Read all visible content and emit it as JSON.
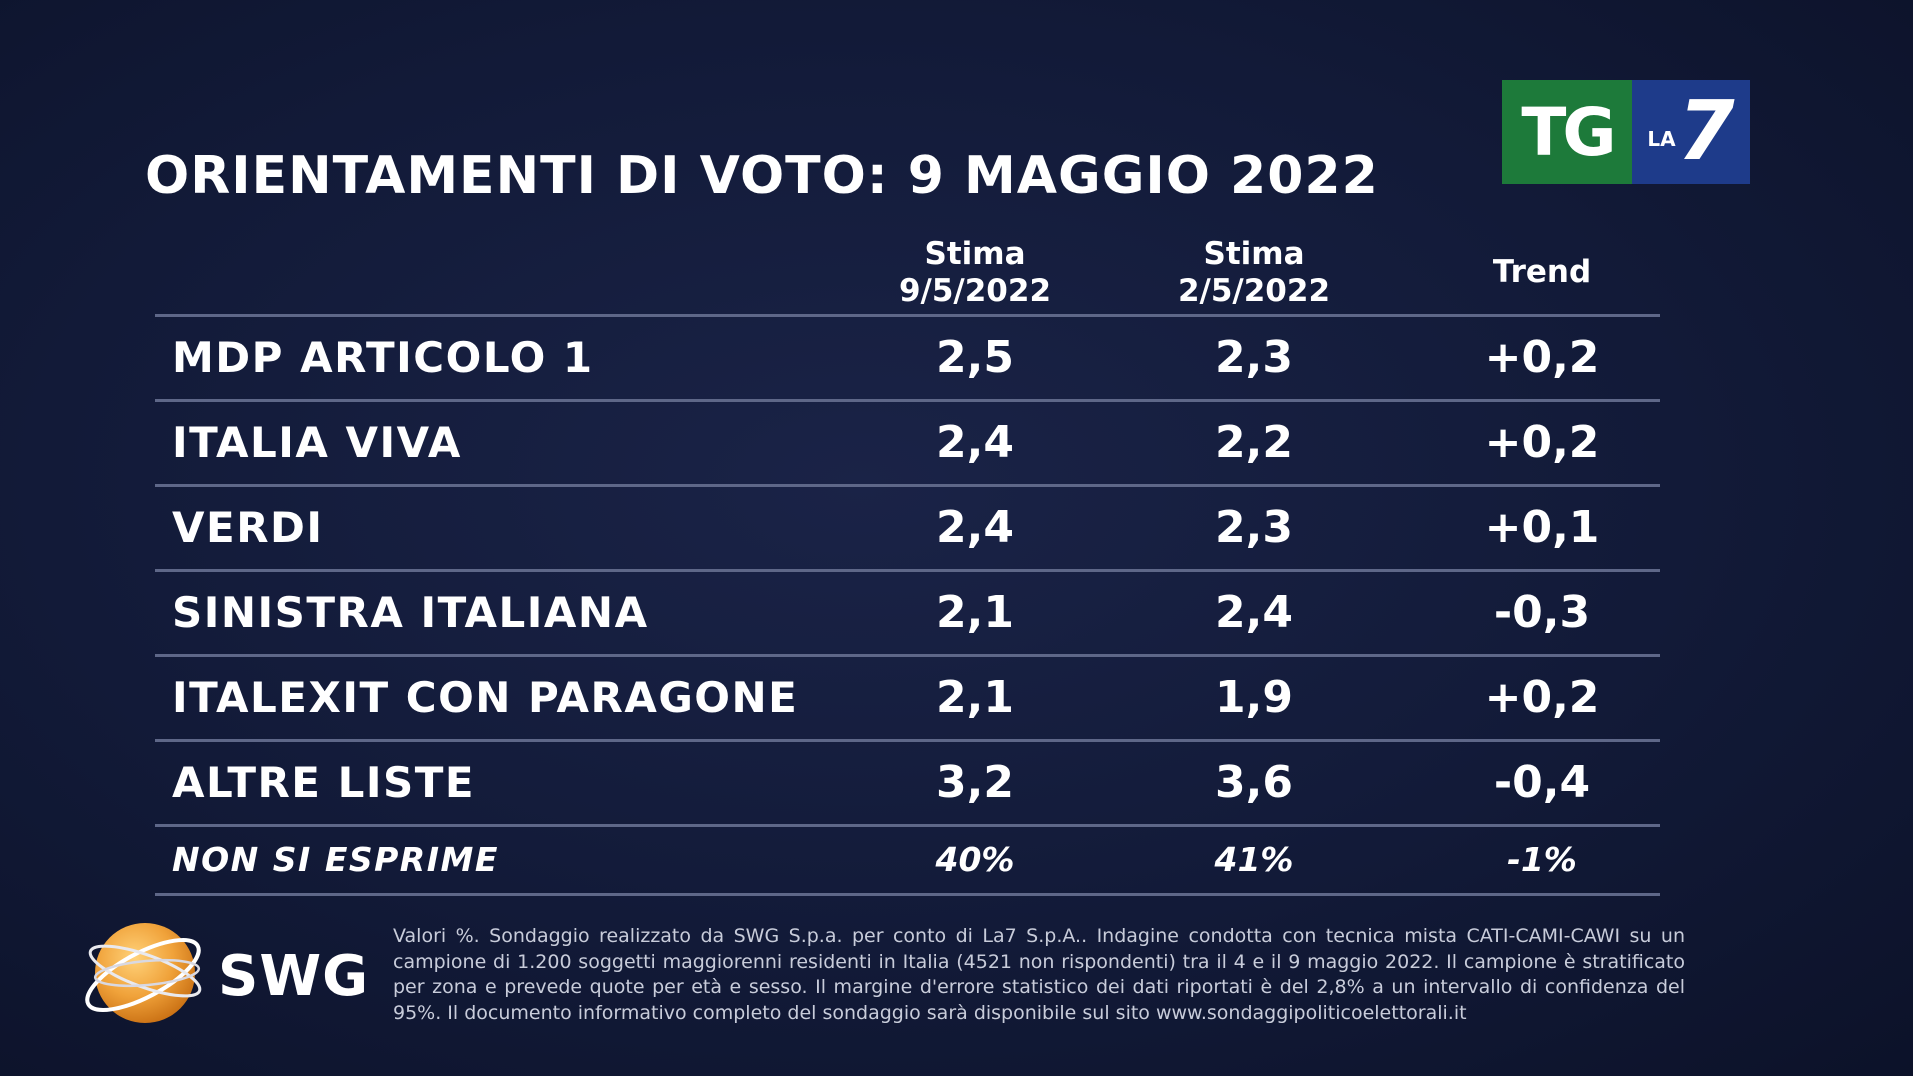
{
  "title": "ORIENTAMENTI DI VOTO: 9 MAGGIO 2022",
  "logo": {
    "tg": "TG",
    "la": "LA",
    "seven": "7"
  },
  "colors": {
    "background": "#121a38",
    "tg_green": "#1d7a3a",
    "la7_blue": "#1e3b8a",
    "swg_orange": "#f0a23a",
    "divider": "#5e6788"
  },
  "chart_data": {
    "type": "table",
    "title": "ORIENTAMENTI DI VOTO: 9 MAGGIO 2022",
    "columns": [
      {
        "line1": "Stima",
        "line2": "9/5/2022"
      },
      {
        "line1": "Stima",
        "line2": "2/5/2022"
      },
      {
        "line1": "Trend",
        "line2": ""
      }
    ],
    "rows": [
      {
        "party": "MDP ARTICOLO 1",
        "stima_9_5": "2,5",
        "stima_2_5": "2,3",
        "trend": "+0,2"
      },
      {
        "party": "ITALIA VIVA",
        "stima_9_5": "2,4",
        "stima_2_5": "2,2",
        "trend": "+0,2"
      },
      {
        "party": "VERDI",
        "stima_9_5": "2,4",
        "stima_2_5": "2,3",
        "trend": "+0,1"
      },
      {
        "party": "SINISTRA ITALIANA",
        "stima_9_5": "2,1",
        "stima_2_5": "2,4",
        "trend": "-0,3"
      },
      {
        "party": "ITALEXIT CON PARAGONE",
        "stima_9_5": "2,1",
        "stima_2_5": "1,9",
        "trend": "+0,2"
      },
      {
        "party": "ALTRE LISTE",
        "stima_9_5": "3,2",
        "stima_2_5": "3,6",
        "trend": "-0,4"
      },
      {
        "party": "NON SI ESPRIME",
        "stima_9_5": "40%",
        "stima_2_5": "41%",
        "trend": "-1%"
      }
    ]
  },
  "source": {
    "brand": "SWG",
    "footnote": "Valori %. Sondaggio realizzato da SWG S.p.a. per conto di La7 S.p.A.. Indagine condotta con tecnica mista CATI-CAMI-CAWI su un campione di 1.200 soggetti maggiorenni residenti in Italia (4521 non rispondenti) tra il 4 e il 9 maggio 2022. Il campione è stratificato per zona e prevede quote per età e sesso. Il margine d'errore statistico dei dati riportati è del 2,8% a un intervallo di confidenza del 95%. Il documento informativo completo del sondaggio sarà disponibile sul sito www.sondaggipoliticoelettorali.it"
  }
}
